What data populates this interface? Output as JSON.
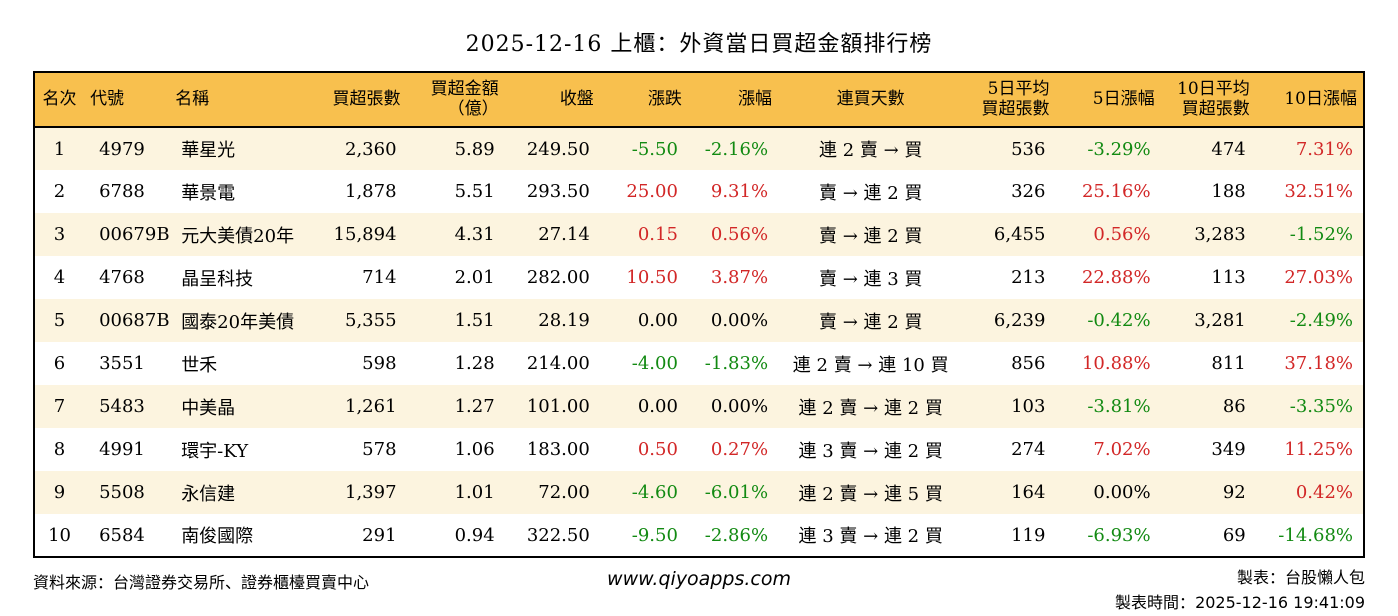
{
  "title": "2025-12-16 上櫃：外資當日買超金額排行榜",
  "colors": {
    "header_bg": "#F8C04E",
    "row_alt": "#FCF4DF",
    "up_red": "#D22727",
    "down_green": "#128A12",
    "border": "#000000"
  },
  "table": {
    "columns": [
      {
        "key": "rank",
        "label": "名次",
        "align": "center"
      },
      {
        "key": "code",
        "label": "代號",
        "align": "left"
      },
      {
        "key": "name",
        "label": "名稱",
        "align": "left"
      },
      {
        "key": "buy_volume",
        "label": "買超張數",
        "align": "right"
      },
      {
        "key": "buy_amount",
        "label": "買超金額\n（億）",
        "align": "right"
      },
      {
        "key": "close",
        "label": "收盤",
        "align": "right"
      },
      {
        "key": "change",
        "label": "漲跌",
        "align": "right"
      },
      {
        "key": "change_pct",
        "label": "漲幅",
        "align": "right"
      },
      {
        "key": "streak",
        "label": "連買天數",
        "align": "center"
      },
      {
        "key": "avg5",
        "label": "5日平均\n買超張數",
        "align": "right"
      },
      {
        "key": "pct5",
        "label": "5日漲幅",
        "align": "right"
      },
      {
        "key": "avg10",
        "label": "10日平均\n買超張數",
        "align": "right"
      },
      {
        "key": "pct10",
        "label": "10日漲幅",
        "align": "right"
      }
    ],
    "rows": [
      {
        "rank": "1",
        "code": "4979",
        "name": "華星光",
        "buy_volume": "2,360",
        "buy_amount": "5.89",
        "close": "249.50",
        "change": {
          "v": "-5.50",
          "t": "down"
        },
        "change_pct": {
          "v": "-2.16%",
          "t": "down"
        },
        "streak": "連 2 賣 → 買",
        "avg5": "536",
        "pct5": {
          "v": "-3.29%",
          "t": "down"
        },
        "avg10": "474",
        "pct10": {
          "v": "7.31%",
          "t": "up"
        }
      },
      {
        "rank": "2",
        "code": "6788",
        "name": "華景電",
        "buy_volume": "1,878",
        "buy_amount": "5.51",
        "close": "293.50",
        "change": {
          "v": "25.00",
          "t": "up"
        },
        "change_pct": {
          "v": "9.31%",
          "t": "up"
        },
        "streak": "賣 → 連 2 買",
        "avg5": "326",
        "pct5": {
          "v": "25.16%",
          "t": "up"
        },
        "avg10": "188",
        "pct10": {
          "v": "32.51%",
          "t": "up"
        }
      },
      {
        "rank": "3",
        "code": "00679B",
        "name": "元大美債20年",
        "buy_volume": "15,894",
        "buy_amount": "4.31",
        "close": "27.14",
        "change": {
          "v": "0.15",
          "t": "up"
        },
        "change_pct": {
          "v": "0.56%",
          "t": "up"
        },
        "streak": "賣 → 連 2 買",
        "avg5": "6,455",
        "pct5": {
          "v": "0.56%",
          "t": "up"
        },
        "avg10": "3,283",
        "pct10": {
          "v": "-1.52%",
          "t": "down"
        }
      },
      {
        "rank": "4",
        "code": "4768",
        "name": "晶呈科技",
        "buy_volume": "714",
        "buy_amount": "2.01",
        "close": "282.00",
        "change": {
          "v": "10.50",
          "t": "up"
        },
        "change_pct": {
          "v": "3.87%",
          "t": "up"
        },
        "streak": "賣 → 連 3 買",
        "avg5": "213",
        "pct5": {
          "v": "22.88%",
          "t": "up"
        },
        "avg10": "113",
        "pct10": {
          "v": "27.03%",
          "t": "up"
        }
      },
      {
        "rank": "5",
        "code": "00687B",
        "name": "國泰20年美債",
        "buy_volume": "5,355",
        "buy_amount": "1.51",
        "close": "28.19",
        "change": {
          "v": "0.00",
          "t": "flat"
        },
        "change_pct": {
          "v": "0.00%",
          "t": "flat"
        },
        "streak": "賣 → 連 2 買",
        "avg5": "6,239",
        "pct5": {
          "v": "-0.42%",
          "t": "down"
        },
        "avg10": "3,281",
        "pct10": {
          "v": "-2.49%",
          "t": "down"
        }
      },
      {
        "rank": "6",
        "code": "3551",
        "name": "世禾",
        "buy_volume": "598",
        "buy_amount": "1.28",
        "close": "214.00",
        "change": {
          "v": "-4.00",
          "t": "down"
        },
        "change_pct": {
          "v": "-1.83%",
          "t": "down"
        },
        "streak": "連 2 賣 → 連 10 買",
        "avg5": "856",
        "pct5": {
          "v": "10.88%",
          "t": "up"
        },
        "avg10": "811",
        "pct10": {
          "v": "37.18%",
          "t": "up"
        }
      },
      {
        "rank": "7",
        "code": "5483",
        "name": "中美晶",
        "buy_volume": "1,261",
        "buy_amount": "1.27",
        "close": "101.00",
        "change": {
          "v": "0.00",
          "t": "flat"
        },
        "change_pct": {
          "v": "0.00%",
          "t": "flat"
        },
        "streak": "連 2 賣 → 連 2 買",
        "avg5": "103",
        "pct5": {
          "v": "-3.81%",
          "t": "down"
        },
        "avg10": "86",
        "pct10": {
          "v": "-3.35%",
          "t": "down"
        }
      },
      {
        "rank": "8",
        "code": "4991",
        "name": "環宇-KY",
        "buy_volume": "578",
        "buy_amount": "1.06",
        "close": "183.00",
        "change": {
          "v": "0.50",
          "t": "up"
        },
        "change_pct": {
          "v": "0.27%",
          "t": "up"
        },
        "streak": "連 3 賣 → 連 2 買",
        "avg5": "274",
        "pct5": {
          "v": "7.02%",
          "t": "up"
        },
        "avg10": "349",
        "pct10": {
          "v": "11.25%",
          "t": "up"
        }
      },
      {
        "rank": "9",
        "code": "5508",
        "name": "永信建",
        "buy_volume": "1,397",
        "buy_amount": "1.01",
        "close": "72.00",
        "change": {
          "v": "-4.60",
          "t": "down"
        },
        "change_pct": {
          "v": "-6.01%",
          "t": "down"
        },
        "streak": "連 2 賣 → 連 5 買",
        "avg5": "164",
        "pct5": {
          "v": "0.00%",
          "t": "flat"
        },
        "avg10": "92",
        "pct10": {
          "v": "0.42%",
          "t": "up"
        }
      },
      {
        "rank": "10",
        "code": "6584",
        "name": "南俊國際",
        "buy_volume": "291",
        "buy_amount": "0.94",
        "close": "322.50",
        "change": {
          "v": "-9.50",
          "t": "down"
        },
        "change_pct": {
          "v": "-2.86%",
          "t": "down"
        },
        "streak": "連 3 賣 → 連 2 買",
        "avg5": "119",
        "pct5": {
          "v": "-6.93%",
          "t": "down"
        },
        "avg10": "69",
        "pct10": {
          "v": "-14.68%",
          "t": "down"
        }
      }
    ]
  },
  "footer": {
    "source": "資料來源：台灣證券交易所、證券櫃檯買賣中心",
    "website": "www.qiyoapps.com",
    "maker": "製表：台股懶人包",
    "time_label": "製表時間：",
    "time_value": "2025-12-16 19:41:09"
  }
}
